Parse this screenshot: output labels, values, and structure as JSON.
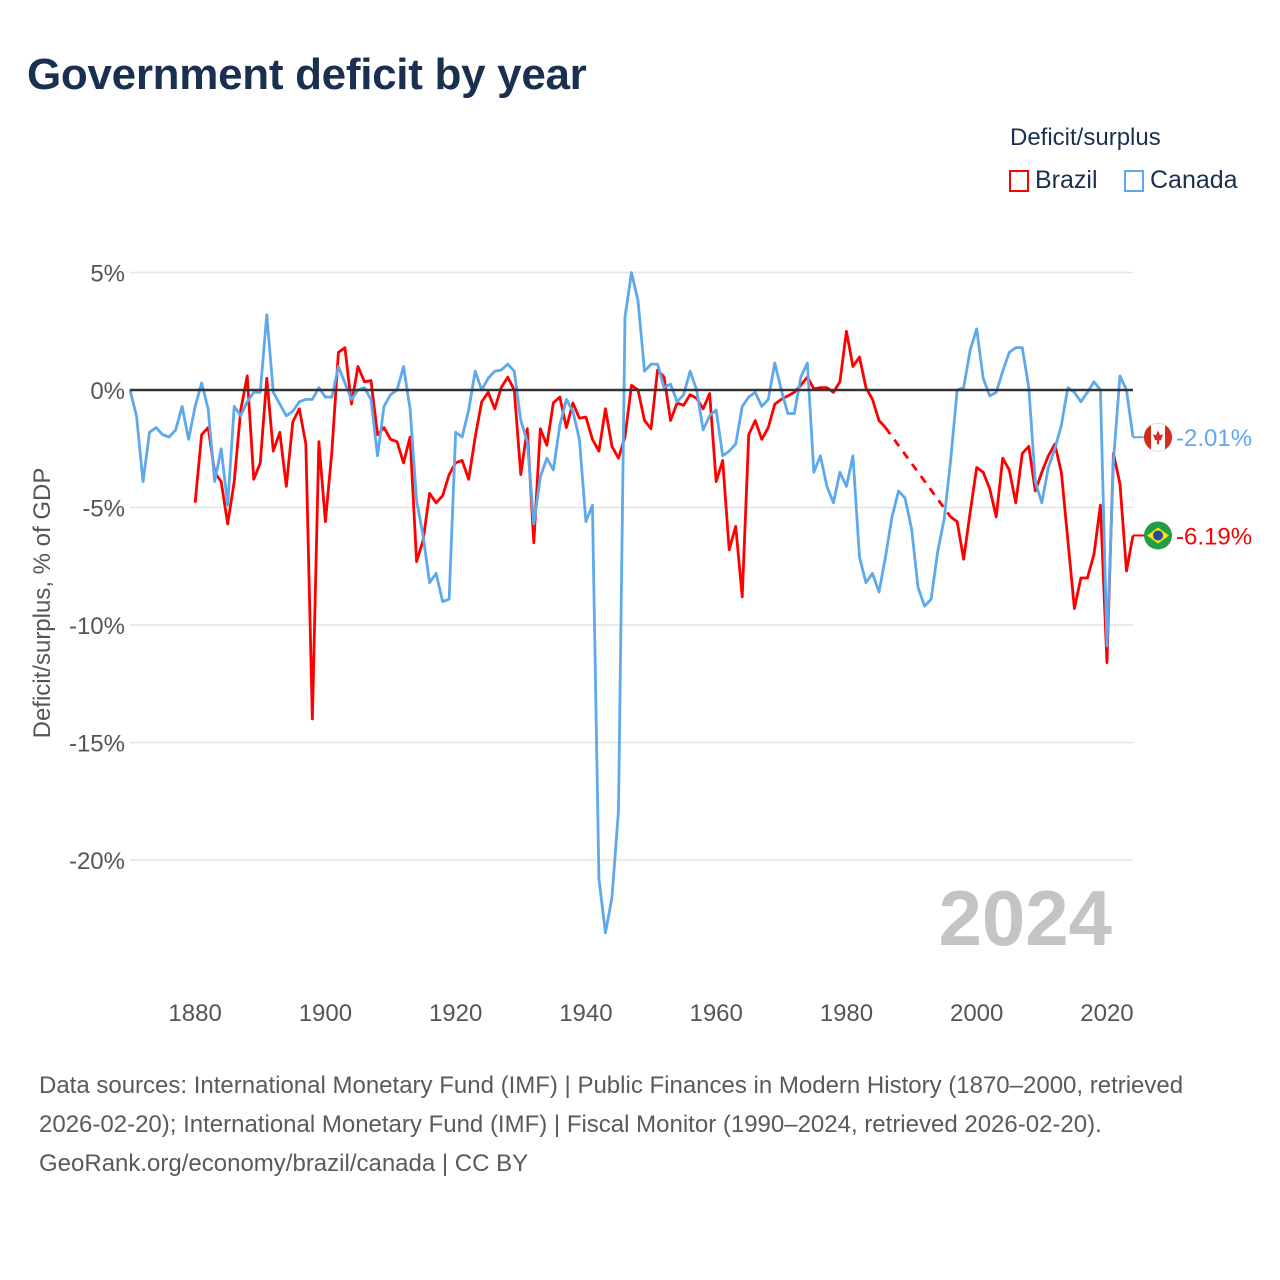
{
  "title": "Government deficit by year",
  "legend": {
    "title": "Deficit/surplus",
    "items": [
      {
        "label": "Brazil",
        "color": "#ff0000"
      },
      {
        "label": "Canada",
        "color": "#5ea8ec"
      }
    ]
  },
  "chart_data": {
    "type": "line",
    "title": "Government deficit by year",
    "xlabel": "",
    "ylabel": "Deficit/surplus, % of GDP",
    "xlim": [
      1870,
      2024
    ],
    "ylim": [
      -24,
      5
    ],
    "x_ticks": [
      1880,
      1900,
      1920,
      1940,
      1960,
      1980,
      2000,
      2020
    ],
    "x_tick_labels": [
      "1880",
      "1900",
      "1920",
      "1940",
      "1960",
      "1980",
      "2000",
      "2020"
    ],
    "y_ticks": [
      5,
      0,
      -5,
      -10,
      -15,
      -20
    ],
    "y_tick_labels": [
      "5%",
      "0%",
      "-5%",
      "-10%",
      "-15%",
      "-20%"
    ],
    "grid": true,
    "legend_position": "top-right",
    "year_label": "2024",
    "series": [
      {
        "name": "Brazil",
        "color": "#ff0000",
        "end_label": "-6.19%",
        "start_year": 1880,
        "values": [
          -4.8,
          -1.9,
          -1.6,
          -3.5,
          -3.9,
          -5.7,
          -3.9,
          -0.85,
          0.6,
          -3.8,
          -3.1,
          0.5,
          -2.6,
          -1.8,
          -4.1,
          -1.35,
          -0.8,
          -2.3,
          -14.0,
          -2.2,
          -5.6,
          -2.6,
          1.6,
          1.8,
          -0.6,
          1.0,
          0.35,
          0.4,
          -1.9,
          -1.6,
          -2.1,
          -2.2,
          -3.1,
          -2.0,
          -7.3,
          -6.4,
          -4.4,
          -4.8,
          -4.5,
          -3.6,
          -3.1,
          -3.0,
          -3.8,
          -2.0,
          -0.5,
          -0.1,
          -0.8,
          0.1,
          0.55,
          0.0,
          -3.6,
          -1.65,
          -6.5,
          -1.65,
          -2.35,
          -0.55,
          -0.3,
          -1.6,
          -0.55,
          -1.2,
          -1.15,
          -2.1,
          -2.6,
          -0.8,
          -2.4,
          -2.9,
          -2.0,
          0.2,
          0.0,
          -1.3,
          -1.65,
          0.85,
          0.55,
          -1.3,
          -0.55,
          -0.65,
          -0.2,
          -0.35,
          -0.8,
          -0.15,
          -3.9,
          -3.0,
          -6.8,
          -5.8,
          -8.8,
          -1.9,
          -1.3,
          -2.1,
          -1.6,
          -0.6,
          -0.4,
          -0.25,
          -0.1,
          0.2,
          0.55,
          0.05,
          0.1,
          0.1,
          -0.1,
          0.35,
          2.5,
          1.0,
          1.4,
          0.1,
          -0.4,
          -1.3,
          -1.6,
          null,
          null,
          null,
          null,
          null,
          null,
          null,
          null,
          null,
          -5.4,
          -5.6,
          -7.2,
          -5.2,
          -3.3,
          -3.5,
          -4.2,
          -5.4,
          -2.9,
          -3.4,
          -4.8,
          -2.7,
          -2.4,
          -4.3,
          -3.5,
          -2.8,
          -2.3,
          -3.5,
          -6.4,
          -9.3,
          -8.0,
          -8.0,
          -7.0,
          -4.9,
          -11.6,
          -2.7,
          -4.0,
          -7.7,
          -6.19
        ]
      },
      {
        "name": "Canada",
        "color": "#5ea8ec",
        "end_label": "-2.01%",
        "start_year": 1870,
        "values": [
          0.0,
          -1.1,
          -3.9,
          -1.8,
          -1.6,
          -1.9,
          -2.0,
          -1.7,
          -0.7,
          -2.1,
          -0.7,
          0.3,
          -0.8,
          -3.9,
          -2.5,
          -4.9,
          -0.7,
          -1.1,
          -0.5,
          -0.1,
          -0.1,
          3.2,
          -0.1,
          -0.6,
          -1.1,
          -0.9,
          -0.5,
          -0.4,
          -0.4,
          0.1,
          -0.3,
          -0.3,
          1.0,
          0.3,
          -0.4,
          0.0,
          0.1,
          -0.4,
          -2.8,
          -0.7,
          -0.2,
          0.0,
          1.0,
          -0.8,
          -4.7,
          -6.2,
          -8.2,
          -7.8,
          -9.0,
          -8.9,
          -1.8,
          -2.0,
          -0.85,
          0.8,
          0.0,
          0.5,
          0.8,
          0.85,
          1.1,
          0.8,
          -1.3,
          -2.2,
          -5.7,
          -3.7,
          -2.9,
          -3.4,
          -1.5,
          -0.4,
          -0.9,
          -2.1,
          -5.6,
          -4.9,
          -20.8,
          -23.1,
          -21.6,
          -17.9,
          3.1,
          5.0,
          3.8,
          0.8,
          1.1,
          1.1,
          0.1,
          0.25,
          -0.5,
          -0.2,
          0.8,
          0.0,
          -1.7,
          -1.1,
          -0.85,
          -2.8,
          -2.6,
          -2.3,
          -0.7,
          -0.3,
          -0.1,
          -0.7,
          -0.4,
          1.15,
          0.0,
          -1.0,
          -1.0,
          0.55,
          1.15,
          -3.5,
          -2.8,
          -4.1,
          -4.8,
          -3.5,
          -4.1,
          -2.8,
          -7.1,
          -8.2,
          -7.8,
          -8.6,
          -7.1,
          -5.4,
          -4.3,
          -4.6,
          -5.9,
          -8.4,
          -9.2,
          -8.9,
          -6.9,
          -5.5,
          -3.0,
          0.0,
          0.1,
          1.7,
          2.6,
          0.5,
          -0.25,
          -0.1,
          0.8,
          1.6,
          1.8,
          1.8,
          0.1,
          -3.9,
          -4.8,
          -3.3,
          -2.5,
          -1.5,
          0.1,
          -0.1,
          -0.5,
          -0.1,
          0.35,
          0.0,
          -10.9,
          -3.0,
          0.6,
          0.0,
          -2.01
        ]
      }
    ]
  },
  "footer": {
    "sources": "Data sources: International Monetary Fund (IMF) | Public Finances in Modern History (1870–2000, retrieved 2026-02-20); International Monetary Fund (IMF) | Fiscal Monitor (1990–2024, retrieved 2026-02-20).",
    "attribution": "GeoRank.org/economy/brazil/canada | CC BY"
  }
}
